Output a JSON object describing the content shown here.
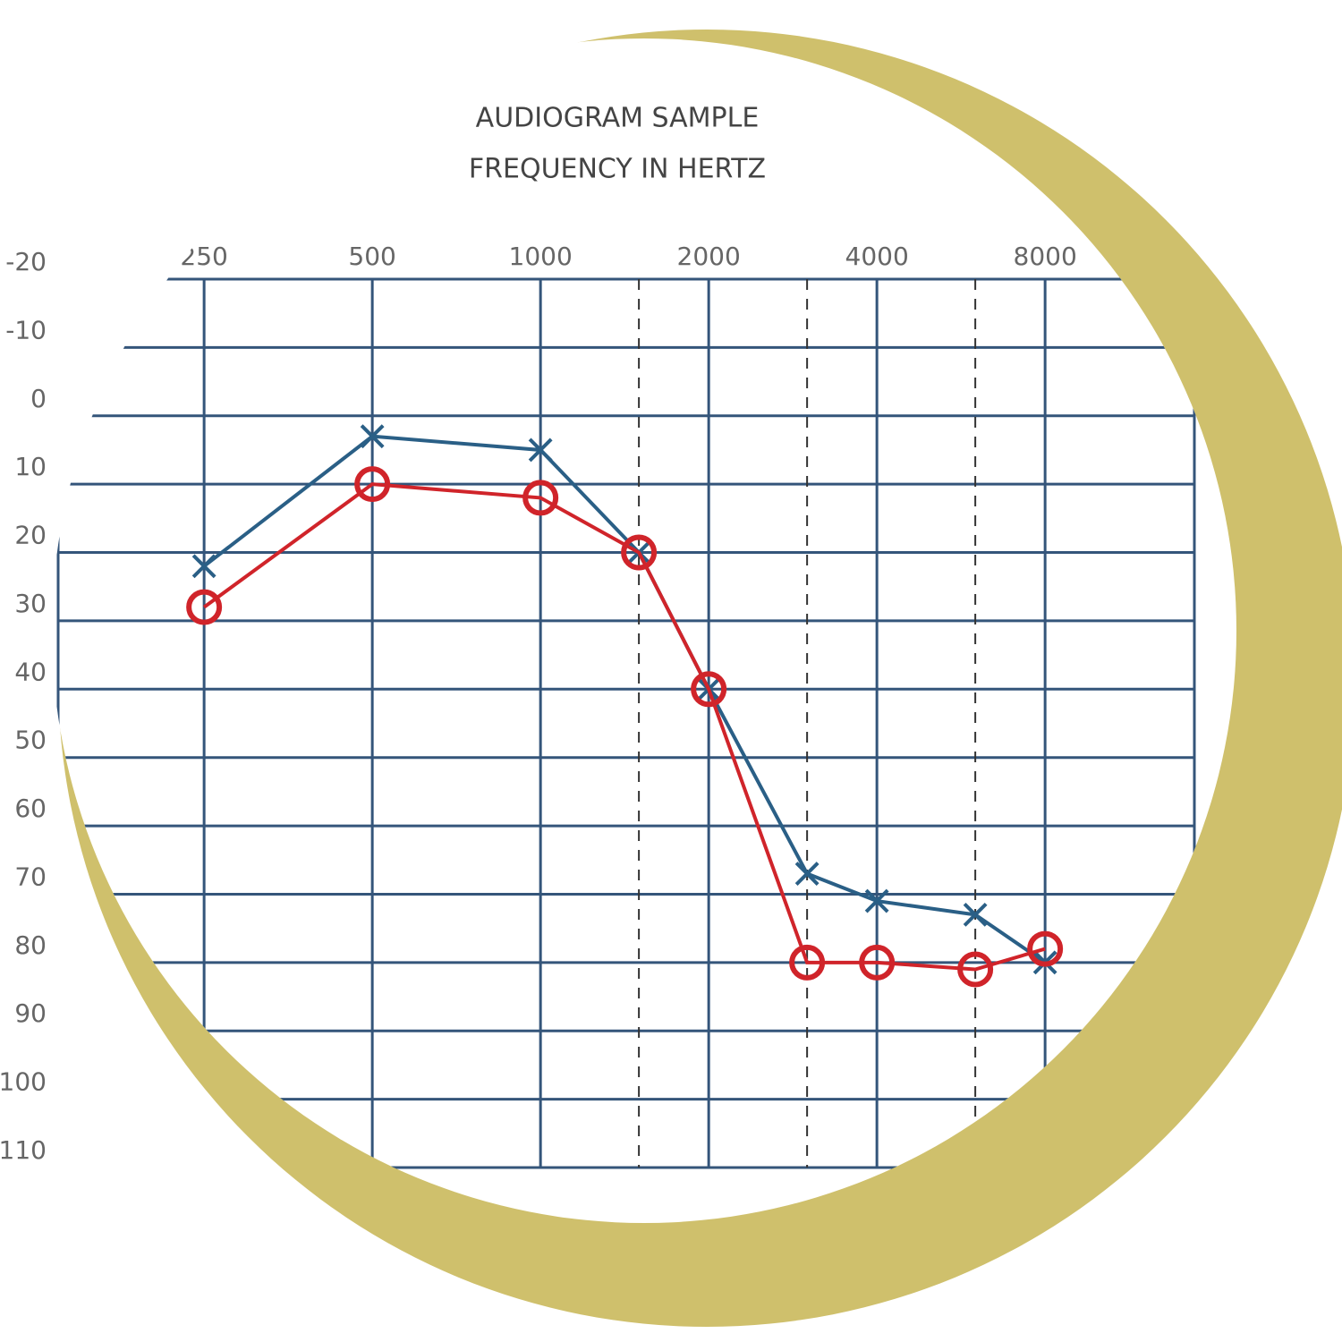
{
  "chart_data": {
    "type": "line",
    "title": "AUDIOGRAM SAMPLE",
    "subtitle": "FREQUENCY IN HERTZ",
    "x": [
      250,
      500,
      1000,
      1500,
      2000,
      3000,
      4000,
      6000,
      8000
    ],
    "xlim": [
      137,
      14800
    ],
    "xscale": "log",
    "xticks": [
      250,
      500,
      1000,
      2000,
      4000,
      8000
    ],
    "x_dashed_grid": [
      1500,
      3000,
      6000
    ],
    "ylim": [
      -20,
      110
    ],
    "yreversed": true,
    "yticks": [
      -20,
      -10,
      0,
      10,
      20,
      30,
      40,
      50,
      60,
      70,
      80,
      90,
      100,
      110
    ],
    "grid": true,
    "series": [
      {
        "color": "#2a5f86",
        "marker": "x",
        "values": [
          22,
          3,
          5,
          20,
          40,
          67,
          71,
          73,
          80
        ]
      },
      {
        "color": "#d0242a",
        "marker": "o",
        "values": [
          28,
          10,
          12,
          20,
          40,
          80,
          80,
          81,
          78
        ]
      }
    ]
  }
}
